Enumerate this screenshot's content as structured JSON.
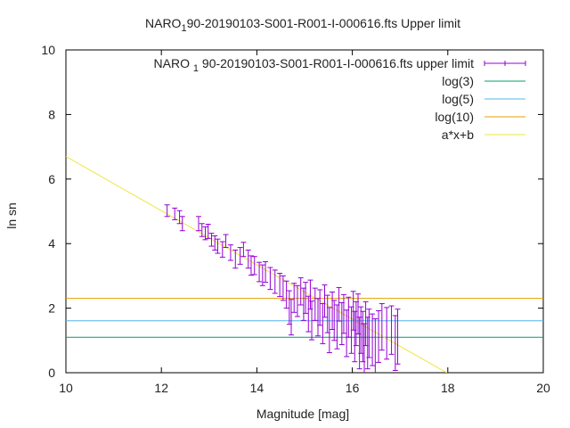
{
  "chart_data": {
    "type": "scatter",
    "title_prefix": "NARO",
    "title_sub": "1",
    "title_suffix": "90-20190103-S001-R001-I-000616.fts Upper limit",
    "xlabel": "Magnitude [mag]",
    "ylabel": "ln sn",
    "xlim": [
      10,
      20
    ],
    "ylim": [
      0,
      10
    ],
    "xticks": [
      10,
      12,
      14,
      16,
      18,
      20
    ],
    "yticks": [
      0,
      2,
      4,
      6,
      8,
      10
    ],
    "legend_position": "top-right",
    "series": [
      {
        "name": "NARO 1 90-20190103-S001-R001-I-000616.fts upper limit",
        "legend_label": "NARO",
        "legend_sub": "1",
        "legend_suffix": "90-20190103-S001-R001-I-000616.fts upper limit",
        "kind": "errorbars",
        "color": "#9400d3",
        "points": [
          [
            12.12,
            5.02,
            0.18
          ],
          [
            12.28,
            4.92,
            0.18
          ],
          [
            12.38,
            4.82,
            0.2
          ],
          [
            12.44,
            4.62,
            0.22
          ],
          [
            12.78,
            4.62,
            0.22
          ],
          [
            12.85,
            4.42,
            0.2
          ],
          [
            12.92,
            4.32,
            0.2
          ],
          [
            12.98,
            4.38,
            0.22
          ],
          [
            13.05,
            4.12,
            0.2
          ],
          [
            13.12,
            4.02,
            0.22
          ],
          [
            13.18,
            3.92,
            0.22
          ],
          [
            13.28,
            3.82,
            0.24
          ],
          [
            13.35,
            4.08,
            0.2
          ],
          [
            13.45,
            3.72,
            0.24
          ],
          [
            13.55,
            3.52,
            0.28
          ],
          [
            13.65,
            3.62,
            0.26
          ],
          [
            13.72,
            3.82,
            0.22
          ],
          [
            13.82,
            3.52,
            0.28
          ],
          [
            13.88,
            3.32,
            0.3
          ],
          [
            13.95,
            3.32,
            0.28
          ],
          [
            14.05,
            3.12,
            0.3
          ],
          [
            14.12,
            3.02,
            0.32
          ],
          [
            14.18,
            3.12,
            0.32
          ],
          [
            14.28,
            2.92,
            0.34
          ],
          [
            14.38,
            2.82,
            0.36
          ],
          [
            14.48,
            2.72,
            0.36
          ],
          [
            14.55,
            2.62,
            0.38
          ],
          [
            14.62,
            2.42,
            0.42
          ],
          [
            14.68,
            2.02,
            0.52
          ],
          [
            14.72,
            1.72,
            0.55
          ],
          [
            14.78,
            2.32,
            0.45
          ],
          [
            14.85,
            2.22,
            0.48
          ],
          [
            14.92,
            2.52,
            0.42
          ],
          [
            14.98,
            2.12,
            0.5
          ],
          [
            15.02,
            2.32,
            0.48
          ],
          [
            15.08,
            1.82,
            0.55
          ],
          [
            15.12,
            2.42,
            0.45
          ],
          [
            15.15,
            1.62,
            0.6
          ],
          [
            15.22,
            2.12,
            0.5
          ],
          [
            15.28,
            1.72,
            0.58
          ],
          [
            15.32,
            2.02,
            0.55
          ],
          [
            15.38,
            1.52,
            0.62
          ],
          [
            15.42,
            2.22,
            0.5
          ],
          [
            15.48,
            1.82,
            0.58
          ],
          [
            15.52,
            1.32,
            0.7
          ],
          [
            15.58,
            1.92,
            0.58
          ],
          [
            15.62,
            1.62,
            0.62
          ],
          [
            15.68,
            1.42,
            0.68
          ],
          [
            15.72,
            2.12,
            0.52
          ],
          [
            15.78,
            1.52,
            0.65
          ],
          [
            15.82,
            1.82,
            0.6
          ],
          [
            15.88,
            1.22,
            0.72
          ],
          [
            15.92,
            1.72,
            0.62
          ],
          [
            15.98,
            1.32,
            0.72
          ],
          [
            16.02,
            1.92,
            0.6
          ],
          [
            16.05,
            1.12,
            0.78
          ],
          [
            16.08,
            1.52,
            0.68
          ],
          [
            16.12,
            1.82,
            0.62
          ],
          [
            16.15,
            0.92,
            0.8
          ],
          [
            16.18,
            1.32,
            0.72
          ],
          [
            16.22,
            1.12,
            0.78
          ],
          [
            16.25,
            0.72,
            0.8
          ],
          [
            16.28,
            1.52,
            0.68
          ],
          [
            16.32,
            0.92,
            0.8
          ],
          [
            16.35,
            1.22,
            0.75
          ],
          [
            16.42,
            1.02,
            0.8
          ],
          [
            16.48,
            0.82,
            0.85
          ],
          [
            16.55,
            1.12,
            0.8
          ],
          [
            16.62,
            1.42,
            0.72
          ],
          [
            16.72,
            1.22,
            0.8
          ],
          [
            16.82,
            1.32,
            0.75
          ],
          [
            16.9,
            0.92,
            0.85
          ],
          [
            16.95,
            1.12,
            0.85
          ]
        ]
      },
      {
        "name": "log(3)",
        "kind": "hline",
        "y": 1.0986,
        "color": "#009e73"
      },
      {
        "name": "log(5)",
        "kind": "hline",
        "y": 1.6094,
        "color": "#56b4e9"
      },
      {
        "name": "log(10)",
        "kind": "hline",
        "y": 2.3026,
        "color": "#e69f00"
      },
      {
        "name": "a*x+b",
        "kind": "line",
        "a": -0.84,
        "b": 15.1,
        "color": "#f0e442"
      }
    ]
  }
}
